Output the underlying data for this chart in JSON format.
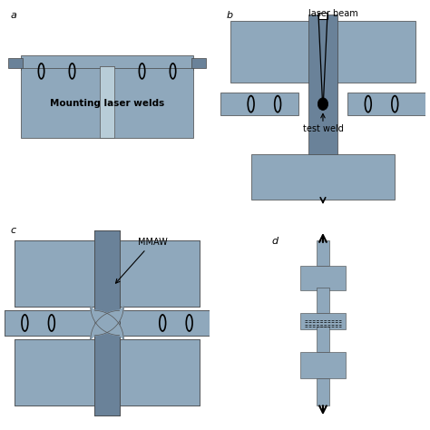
{
  "bg_color": "#ffffff",
  "panel_bg_a": "#ffffff",
  "panel_bg_b": "#dde8f0",
  "panel_bg_c": "#dde8f0",
  "panel_bg_d": "#dde8f0",
  "steel_color": "#8fa8bc",
  "steel_dark": "#6a8299",
  "steel_light": "#b8cdd8",
  "label_a": "a",
  "label_b": "b",
  "label_c": "c",
  "label_d": "d",
  "text_mounting": "Mounting laser welds",
  "text_laser": "laser beam",
  "text_test": "test weld",
  "text_mmaw": "MMAW"
}
